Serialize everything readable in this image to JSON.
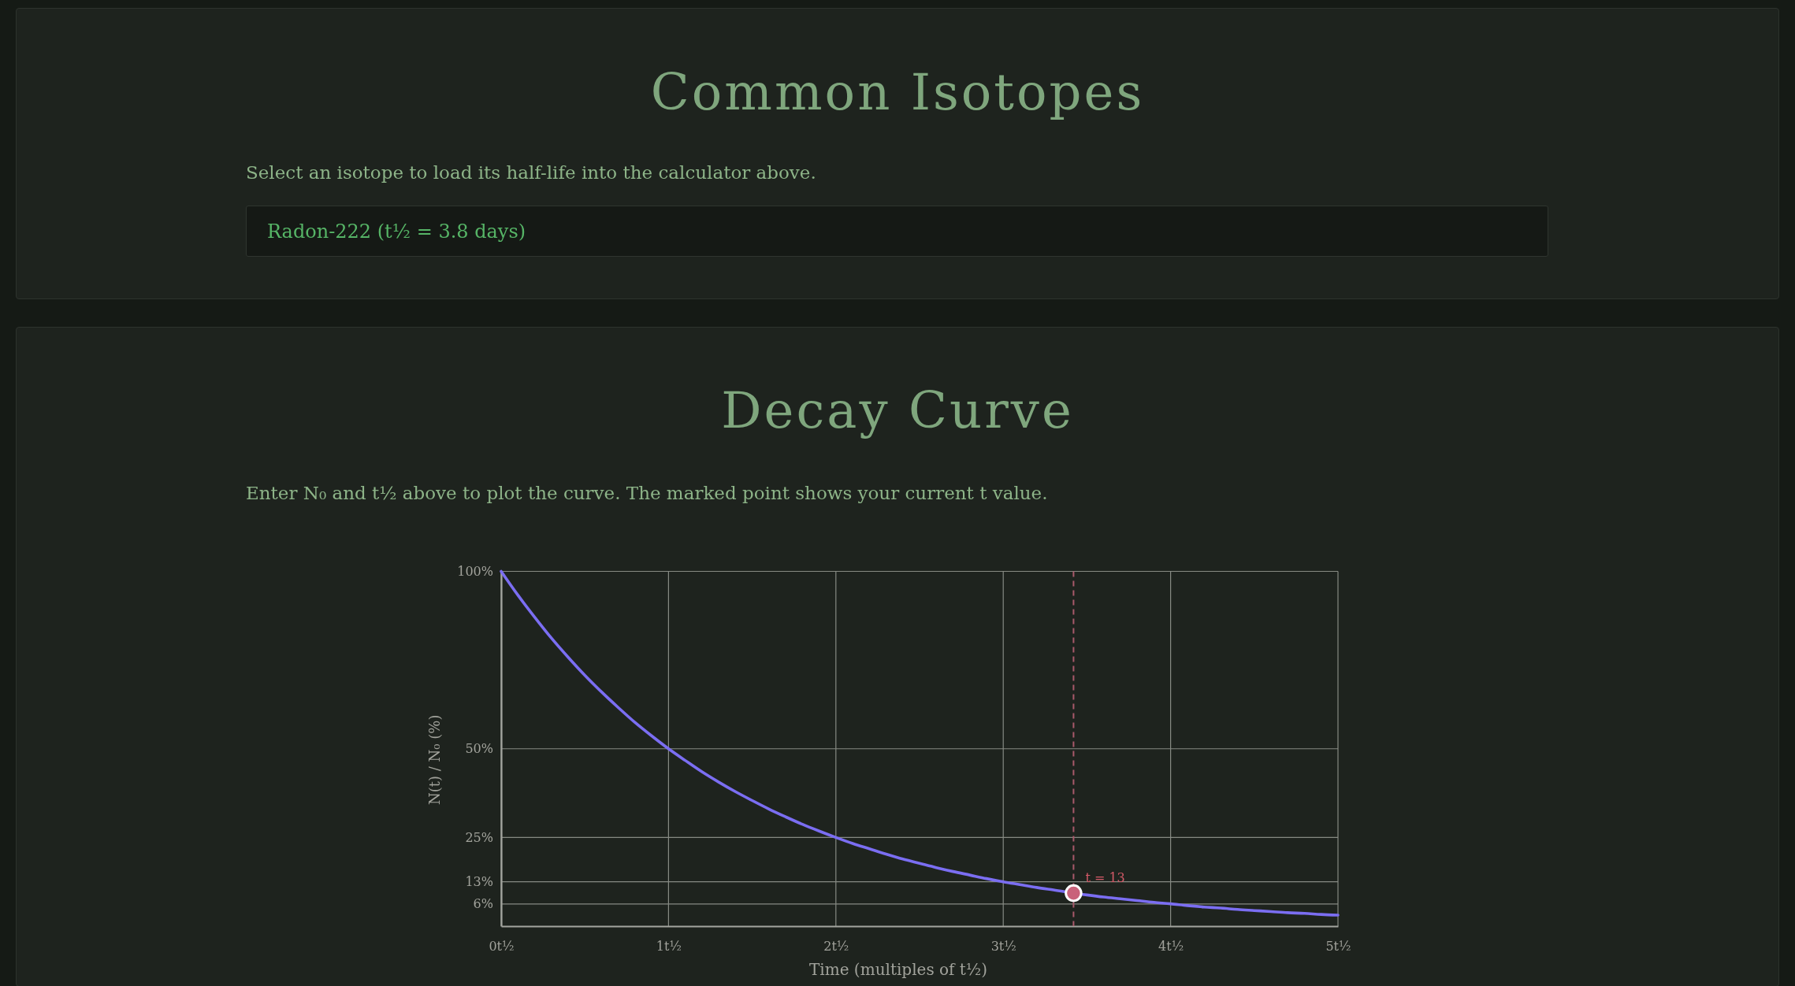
{
  "chart_data": [
    {
      "type": "other",
      "title": "Common Isotopes",
      "subtitle": "Select an isotope to load its half-life into the calculator above.",
      "annotations": [
        "Radon-222 (t½ = 3.8 days)"
      ]
    },
    {
      "type": "line",
      "title": "Decay Curve",
      "subtitle": "Enter N₀ and t½ above to plot the curve. The marked point shows your current t value.",
      "xlabel": "Time (multiples of t½)",
      "ylabel": "N(t) / N₀ (%)",
      "x": [
        0,
        0.1,
        0.2,
        0.3,
        0.4,
        0.5,
        0.6,
        0.7,
        0.8,
        0.9,
        1,
        1.1,
        1.2,
        1.3,
        1.4,
        1.5,
        1.6,
        1.7,
        1.8,
        1.9,
        2,
        2.1,
        2.2,
        2.3,
        2.4,
        2.5,
        2.6,
        2.7,
        2.8,
        2.9,
        3,
        3.1,
        3.2,
        3.3,
        3.5,
        3.6,
        3.7,
        3.8,
        3.9,
        4,
        4.1,
        4.2,
        4.3,
        4.4,
        4.5,
        4.6,
        4.7,
        4.8,
        4.9,
        5
      ],
      "series": [
        {
          "color": "#7b6ef2",
          "values": [
            100,
            93.3,
            87.1,
            81.2,
            75.8,
            70.7,
            66.0,
            61.6,
            57.4,
            53.6,
            50,
            46.7,
            43.5,
            40.6,
            37.9,
            35.4,
            33.0,
            30.8,
            28.7,
            26.8,
            25,
            23.3,
            21.8,
            20.3,
            18.9,
            17.7,
            16.5,
            15.4,
            14.4,
            13.4,
            12.5,
            11.7,
            10.9,
            10.2,
            8.8,
            8.2,
            7.7,
            7.2,
            6.7,
            6.3,
            5.8,
            5.4,
            5.1,
            4.7,
            4.4,
            4.1,
            3.8,
            3.6,
            3.3,
            3.1
          ]
        },
        {
          "type": "scatter",
          "x": [
            3.42
          ],
          "values": [
            9.3
          ],
          "color": "#c9627a",
          "marker": "circle"
        }
      ],
      "xlim": [
        0,
        5
      ],
      "ylim": [
        0,
        100
      ],
      "xticks": [
        {
          "value": 0,
          "label": "0t½"
        },
        {
          "value": 1,
          "label": "1t½"
        },
        {
          "value": 2,
          "label": "2t½"
        },
        {
          "value": 3,
          "label": "3t½"
        },
        {
          "value": 4,
          "label": "4t½"
        },
        {
          "value": 5,
          "label": "5t½"
        }
      ],
      "yticks": [
        {
          "value": 6.25,
          "label": "6%"
        },
        {
          "value": 12.5,
          "label": "13%"
        },
        {
          "value": 25,
          "label": "25%"
        },
        {
          "value": 50,
          "label": "50%"
        },
        {
          "value": 100,
          "label": "100%"
        }
      ],
      "grid": true,
      "ref_lines": [
        {
          "axis": "x",
          "value": 3.42,
          "color": "#a8596b",
          "line_style": "dashed"
        }
      ],
      "annotations": [
        {
          "text": "t = 13",
          "x": 3.42,
          "y": 9.3
        }
      ]
    }
  ]
}
